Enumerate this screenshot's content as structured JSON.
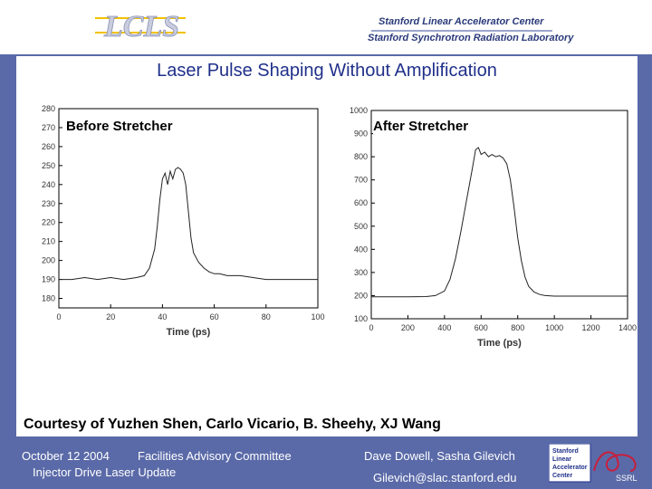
{
  "header": {
    "logo_text": "LCLS",
    "institution_line1": "Stanford Linear Accelerator Center",
    "institution_line2": "Stanford Synchrotron Radiation Laboratory"
  },
  "slide": {
    "title": "Laser Pulse Shaping Without Amplification",
    "courtesy": "Courtesy  of Yuzhen Shen, Carlo Vicario, B. Sheehy, XJ Wang"
  },
  "chart_data": [
    {
      "type": "line",
      "title": "Before Stretcher",
      "xlabel": "Time (ps)",
      "ylabel": "",
      "xlim": [
        0,
        100
      ],
      "ylim": [
        175,
        280
      ],
      "xticks": [
        0,
        20,
        40,
        60,
        80,
        100
      ],
      "yticks": [
        180,
        190,
        200,
        210,
        220,
        230,
        240,
        250,
        260,
        270,
        280
      ],
      "series": [
        {
          "name": "Before Stretcher",
          "x": [
            0,
            5,
            10,
            15,
            20,
            25,
            30,
            33,
            35,
            37,
            38,
            39,
            40,
            41,
            42,
            43,
            44,
            45,
            46,
            47,
            48,
            49,
            50,
            51,
            52,
            54,
            56,
            58,
            60,
            62,
            65,
            70,
            75,
            80,
            85,
            90,
            95,
            100
          ],
          "y": [
            190,
            190,
            191,
            190,
            191,
            190,
            191,
            192,
            196,
            206,
            218,
            232,
            243,
            246,
            240,
            247,
            243,
            248,
            249,
            248,
            246,
            240,
            226,
            212,
            204,
            199,
            196,
            194,
            193,
            193,
            192,
            192,
            191,
            190,
            190,
            190,
            190,
            190
          ]
        }
      ]
    },
    {
      "type": "line",
      "title": "After Stretcher",
      "xlabel": "Time (ps)",
      "ylabel": "",
      "xlim": [
        0,
        1400
      ],
      "ylim": [
        100,
        1000
      ],
      "xticks": [
        0,
        200,
        400,
        600,
        800,
        1000,
        1200,
        1400
      ],
      "yticks": [
        100,
        200,
        300,
        400,
        500,
        600,
        700,
        800,
        900,
        1000
      ],
      "series": [
        {
          "name": "After Stretcher",
          "x": [
            0,
            100,
            200,
            300,
            350,
            400,
            430,
            460,
            490,
            520,
            550,
            570,
            585,
            600,
            620,
            640,
            660,
            680,
            700,
            720,
            740,
            760,
            780,
            800,
            820,
            840,
            860,
            890,
            920,
            950,
            1000,
            1100,
            1200,
            1300,
            1400
          ],
          "y": [
            195,
            195,
            195,
            196,
            200,
            220,
            270,
            360,
            480,
            610,
            740,
            830,
            840,
            810,
            820,
            800,
            810,
            800,
            805,
            795,
            770,
            700,
            580,
            450,
            350,
            280,
            240,
            215,
            205,
            200,
            198,
            198,
            198,
            198,
            198
          ]
        }
      ]
    }
  ],
  "footer": {
    "date": "October 12 2004",
    "committee": "Facilities Advisory Committee",
    "subtitle": "Injector Drive Laser Update",
    "authors": "Dave Dowell, Sasha Gilevich",
    "email": "Gilevich@slac.stanford.edu",
    "logo_lines": [
      "Stanford",
      "Linear",
      "Accelerator",
      "Center"
    ],
    "ssrl": "SSRL"
  }
}
